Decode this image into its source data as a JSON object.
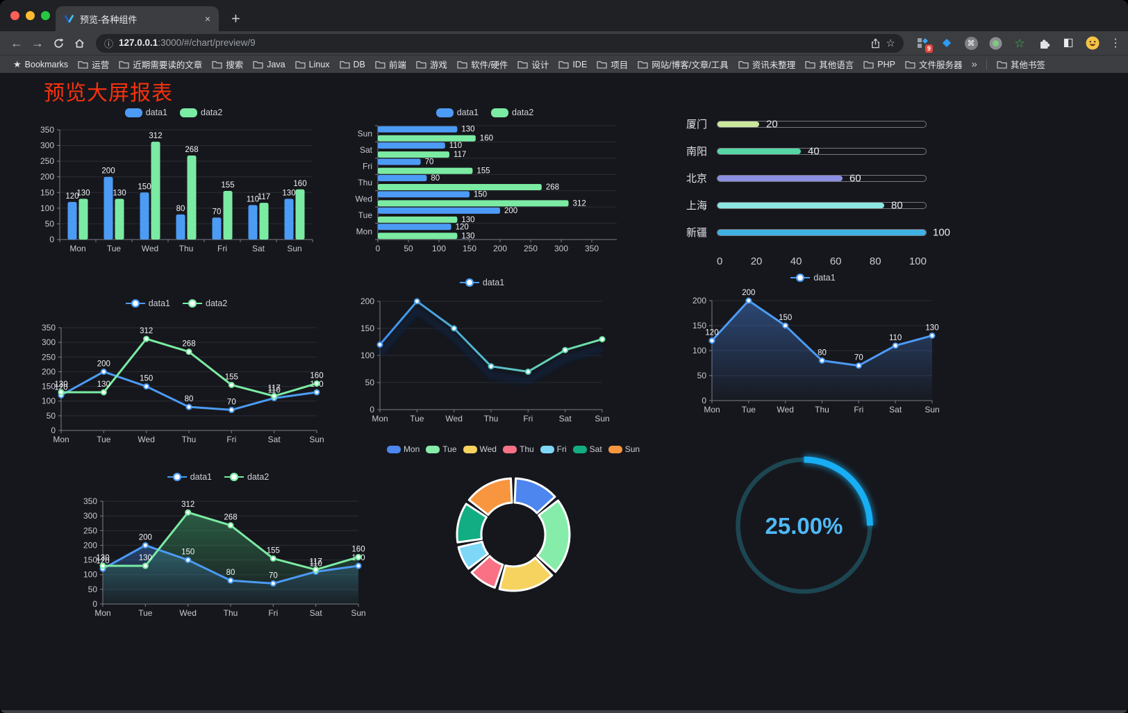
{
  "window": {
    "traffic_lights": {
      "close": "#ff5f57",
      "minimize": "#febc2e",
      "zoom": "#28c840"
    },
    "tab": {
      "title": "预览-各种组件"
    },
    "close_tab_icon": "×",
    "new_tab_icon": "+"
  },
  "toolbar": {
    "back_icon": "←",
    "forward_icon": "→",
    "url": {
      "info_icon": "ⓘ",
      "host": "127.0.0.1",
      "rest": ":3000/#/chart/preview/9"
    },
    "bookmark_star_icon": "☆",
    "menu_icon": "⋮",
    "extensions": [
      {
        "name": "pinned-grid-extension-icon",
        "kind": "grid",
        "badge": "9"
      },
      {
        "name": "gem-extension-icon",
        "kind": "glyph",
        "glyph": "◆",
        "color": "#2f9bf2",
        "size": 16
      },
      {
        "name": "command-extension-icon",
        "kind": "circle-glyph",
        "glyph": "⌘"
      },
      {
        "name": "recorder-extension-icon",
        "kind": "record"
      },
      {
        "name": "green-star-extension-icon",
        "kind": "glyph",
        "glyph": "☆",
        "color": "#35c24a",
        "size": 17
      },
      {
        "name": "extensions-puzzle-icon",
        "kind": "puzzle"
      },
      {
        "name": "contrast-extension-icon",
        "kind": "glyph",
        "glyph": "◧",
        "color": "#e8eaed",
        "size": 16
      },
      {
        "name": "profile-avatar-icon",
        "kind": "avatar"
      }
    ]
  },
  "bookmarks": {
    "star_label": "Bookmarks",
    "folders": [
      "运营",
      "近期需要读的文章",
      "搜索",
      "Java",
      "Linux",
      "DB",
      "前端",
      "游戏",
      "软件/硬件",
      "设计",
      "IDE",
      "项目",
      "网站/博客/文章/工具",
      "资讯未整理",
      "其他语言",
      "PHP",
      "文件服务器"
    ],
    "overflow_icon": "»",
    "other_label": "其他书签"
  },
  "page": {
    "title": "预览大屏报表",
    "title_color": "#f5320e",
    "background": "#16171c"
  },
  "chart_data": [
    {
      "type": "bar",
      "categories": [
        "Mon",
        "Tue",
        "Wed",
        "Thu",
        "Fri",
        "Sat",
        "Sun"
      ],
      "series": [
        {
          "name": "data1",
          "color": "#4C9BF5",
          "values": [
            120,
            200,
            150,
            80,
            70,
            110,
            130
          ]
        },
        {
          "name": "data2",
          "color": "#7BEBA3",
          "values": [
            130,
            130,
            312,
            268,
            155,
            117,
            160
          ]
        }
      ],
      "ylim": [
        0,
        350
      ],
      "ytick_step": 50,
      "legend": "rect",
      "labels": true
    },
    {
      "type": "hbar",
      "categories": [
        "Mon",
        "Tue",
        "Wed",
        "Thu",
        "Fri",
        "Sat",
        "Sun"
      ],
      "series": [
        {
          "name": "data1",
          "color": "#4C9BF5",
          "values": [
            120,
            200,
            150,
            80,
            70,
            110,
            130
          ]
        },
        {
          "name": "data2",
          "color": "#7BEBA3",
          "values": [
            130,
            130,
            312,
            268,
            155,
            117,
            160
          ]
        }
      ],
      "xlim": [
        0,
        350
      ],
      "xtick_step": 50,
      "legend": "rect",
      "labels": true
    },
    {
      "type": "progress",
      "rows": [
        {
          "label": "厦门",
          "value": 20,
          "color": "#CBE79B"
        },
        {
          "label": "南阳",
          "value": 40,
          "color": "#55D7A5"
        },
        {
          "label": "北京",
          "value": 60,
          "color": "#8B90E2"
        },
        {
          "label": "上海",
          "value": 80,
          "color": "#8DE6E2"
        },
        {
          "label": "新疆",
          "value": 100,
          "color": "#3FB1E3"
        }
      ],
      "max": 100,
      "axis_ticks": [
        0,
        20,
        40,
        60,
        80,
        100
      ]
    },
    {
      "type": "line",
      "categories": [
        "Mon",
        "Tue",
        "Wed",
        "Thu",
        "Fri",
        "Sat",
        "Sun"
      ],
      "series": [
        {
          "name": "data1",
          "color": "#4C9BF5",
          "values": [
            120,
            200,
            150,
            80,
            70,
            110,
            130
          ]
        },
        {
          "name": "data2",
          "color": "#7BEBA3",
          "values": [
            130,
            130,
            312,
            268,
            155,
            117,
            160
          ]
        }
      ],
      "ylim": [
        0,
        350
      ],
      "ytick_step": 50,
      "legend": "marker",
      "labels": true
    },
    {
      "type": "line",
      "categories": [
        "Mon",
        "Tue",
        "Wed",
        "Thu",
        "Fri",
        "Sat",
        "Sun"
      ],
      "series": [
        {
          "name": "data1",
          "color": "#4C9BF5",
          "values": [
            120,
            200,
            150,
            80,
            70,
            110,
            130
          ]
        }
      ],
      "gradient": [
        "#3E8EF0",
        "#6FE7A6"
      ],
      "ylim": [
        0,
        200
      ],
      "ytick_step": 50,
      "legend": "marker",
      "labels": false,
      "shadow": true
    },
    {
      "type": "line",
      "categories": [
        "Mon",
        "Tue",
        "Wed",
        "Thu",
        "Fri",
        "Sat",
        "Sun"
      ],
      "series": [
        {
          "name": "data1",
          "color": "#4C9BF5",
          "values": [
            120,
            200,
            150,
            80,
            70,
            110,
            130
          ],
          "fill_top": "rgba(62,112,190,0.55)",
          "fill_bottom": "rgba(62,112,190,0.03)"
        }
      ],
      "ylim": [
        0,
        200
      ],
      "ytick_step": 50,
      "legend": "marker",
      "labels": true
    },
    {
      "type": "line",
      "categories": [
        "Mon",
        "Tue",
        "Wed",
        "Thu",
        "Fri",
        "Sat",
        "Sun"
      ],
      "series": [
        {
          "name": "data1",
          "color": "#4C9BF5",
          "values": [
            120,
            200,
            150,
            80,
            70,
            110,
            130
          ],
          "fill_top": "rgba(56,110,185,0.5)",
          "fill_bottom": "rgba(56,110,185,0.04)"
        },
        {
          "name": "data2",
          "color": "#7BEBA3",
          "values": [
            130,
            130,
            312,
            268,
            155,
            117,
            160
          ],
          "fill_top": "rgba(62,160,105,0.5)",
          "fill_bottom": "rgba(62,160,105,0.04)"
        }
      ],
      "ylim": [
        0,
        350
      ],
      "ytick_step": 50,
      "legend": "marker",
      "labels": true
    },
    {
      "type": "donut",
      "legend": "rect",
      "slices": [
        {
          "label": "Mon",
          "value": 120,
          "color": "#4C86EE"
        },
        {
          "label": "Tue",
          "value": 200,
          "color": "#86ECAA"
        },
        {
          "label": "Wed",
          "value": 150,
          "color": "#F6D35F"
        },
        {
          "label": "Thu",
          "value": 80,
          "color": "#FA7186"
        },
        {
          "label": "Fri",
          "value": 70,
          "color": "#7ED7F7"
        },
        {
          "label": "Sat",
          "value": 110,
          "color": "#12AD82"
        },
        {
          "label": "Sun",
          "value": 130,
          "color": "#F8963F"
        }
      ]
    },
    {
      "type": "gauge",
      "percent": 25,
      "value_text": "25.00%",
      "arc_color": "#18AEF3",
      "track_color": "#1C4651",
      "text_color": "#4FB9F6"
    }
  ]
}
